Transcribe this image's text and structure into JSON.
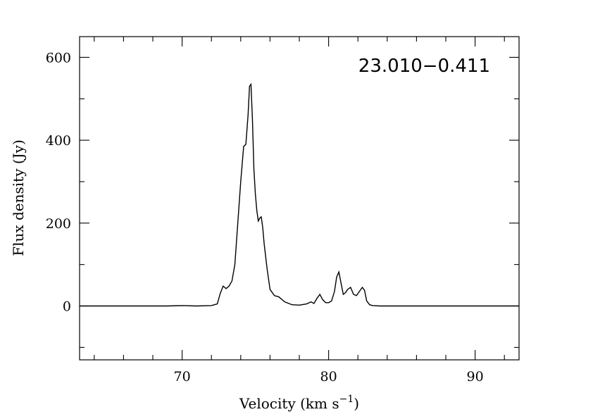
{
  "chart_data": {
    "type": "line",
    "annotation": "23.010−0.411",
    "xlabel": "Velocity (km s",
    "xlabel_sup": "−1",
    "xlabel_end": ")",
    "ylabel": "Flux density (Jy)",
    "xlim": [
      63,
      93
    ],
    "ylim": [
      -130,
      650
    ],
    "x_ticks": [
      70,
      80,
      90
    ],
    "x_tick_labels": [
      "70",
      "80",
      "90"
    ],
    "y_ticks": [
      0,
      200,
      400,
      600
    ],
    "y_tick_labels": [
      "0",
      "200",
      "400",
      "600"
    ],
    "grid": false,
    "line_color": "#000000",
    "series": [
      {
        "x": [
          63.0,
          64.0,
          65.0,
          66.0,
          67.0,
          68.0,
          69.0,
          70.0,
          71.0,
          72.0,
          72.4,
          72.6,
          72.8,
          73.0,
          73.2,
          73.4,
          73.6,
          73.8,
          74.0,
          74.2,
          74.35,
          74.5,
          74.6,
          74.7,
          74.8,
          74.9,
          75.0,
          75.1,
          75.2,
          75.3,
          75.4,
          75.5,
          75.6,
          75.8,
          76.0,
          76.3,
          76.6,
          77.0,
          77.5,
          78.0,
          78.5,
          78.8,
          79.0,
          79.2,
          79.4,
          79.6,
          79.8,
          80.0,
          80.2,
          80.4,
          80.55,
          80.7,
          80.85,
          81.0,
          81.15,
          81.3,
          81.5,
          81.7,
          81.9,
          82.1,
          82.3,
          82.45,
          82.6,
          82.8,
          83.0,
          83.5,
          84.0,
          85.0,
          86.0,
          87.0,
          88.0,
          89.0,
          90.0,
          91.0,
          92.0,
          93.0
        ],
        "y": [
          0,
          0,
          0,
          0,
          0,
          0,
          0,
          1,
          0,
          1,
          5,
          30,
          48,
          42,
          48,
          60,
          100,
          200,
          300,
          385,
          390,
          460,
          530,
          535,
          450,
          330,
          270,
          230,
          205,
          212,
          215,
          190,
          150,
          90,
          40,
          25,
          22,
          10,
          3,
          2,
          5,
          10,
          6,
          18,
          28,
          15,
          8,
          8,
          12,
          35,
          70,
          82,
          55,
          28,
          32,
          40,
          45,
          28,
          25,
          35,
          45,
          38,
          12,
          3,
          1,
          0,
          0,
          0,
          0,
          0,
          0,
          0,
          0,
          0,
          0,
          0
        ]
      }
    ]
  }
}
